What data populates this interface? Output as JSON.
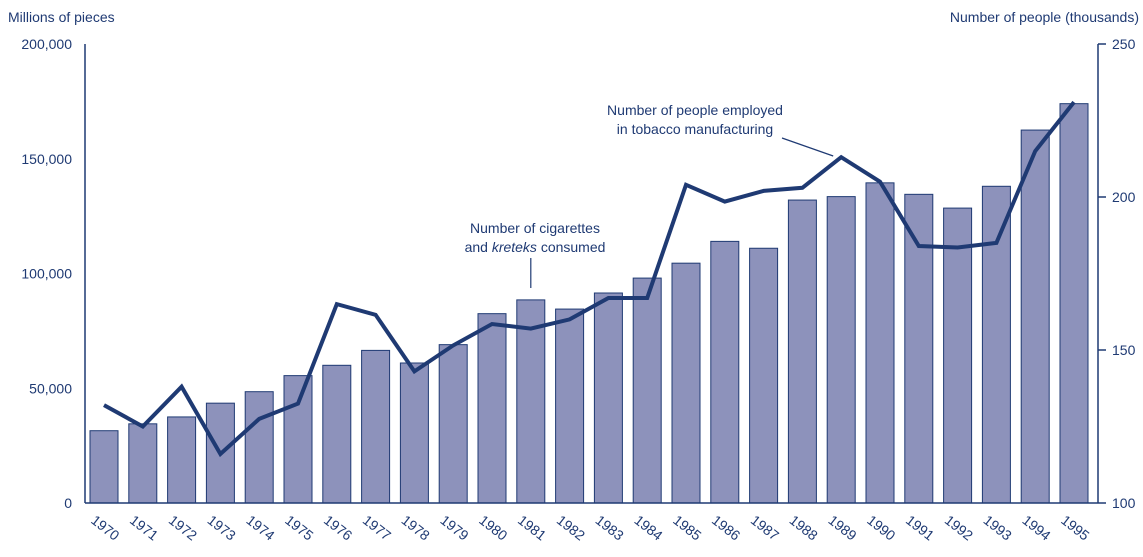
{
  "chart_data": {
    "type": "bar+line",
    "categories": [
      "1970",
      "1971",
      "1972",
      "1973",
      "1974",
      "1975",
      "1976",
      "1977",
      "1978",
      "1979",
      "1980",
      "1981",
      "1982",
      "1983",
      "1984",
      "1985",
      "1986",
      "1987",
      "1988",
      "1989",
      "1990",
      "1991",
      "1992",
      "1993",
      "1994",
      "1995"
    ],
    "y_left": {
      "label": "Millions of pieces",
      "ticks": [
        "0",
        "50,000",
        "100,000",
        "150,000",
        "200,000"
      ],
      "range": [
        0,
        200000
      ]
    },
    "y_right": {
      "label": "Number of people (thousands)",
      "ticks": [
        "100",
        "150",
        "200",
        "250"
      ],
      "range": [
        100,
        250
      ]
    },
    "series": [
      {
        "kind": "bar",
        "axis": "left",
        "values": [
          31500,
          34500,
          37500,
          43500,
          48500,
          55500,
          60000,
          66500,
          61000,
          69000,
          82500,
          88500,
          84500,
          91500,
          98000,
          104500,
          114000,
          111000,
          132000,
          133500,
          139500,
          134500,
          128500,
          138000,
          162500,
          174000
        ],
        "color": "#8d92bb"
      },
      {
        "kind": "line",
        "axis": "right",
        "values": [
          132,
          125,
          138,
          116,
          127.5,
          132.5,
          165,
          161.5,
          143,
          151.5,
          158.5,
          157,
          160,
          167,
          167,
          204,
          198.5,
          202,
          203,
          213,
          205,
          184,
          183.5,
          185,
          215,
          231
        ],
        "color": "#1f3a73"
      }
    ],
    "annotations": [
      {
        "lines": [
          "Number of cigarettes",
          "and kreteks consumed"
        ]
      },
      {
        "lines": [
          "Number of people employed",
          "in tobacco manufacturing"
        ]
      }
    ],
    "annot_cig": {
      "line1": "Number of cigarettes",
      "line2_pre": "and ",
      "line2_em": "kreteks",
      "line2_post": " consumed"
    },
    "annot_emp": {
      "line1": "Number of people employed",
      "line2": "in tobacco manufacturing"
    }
  }
}
